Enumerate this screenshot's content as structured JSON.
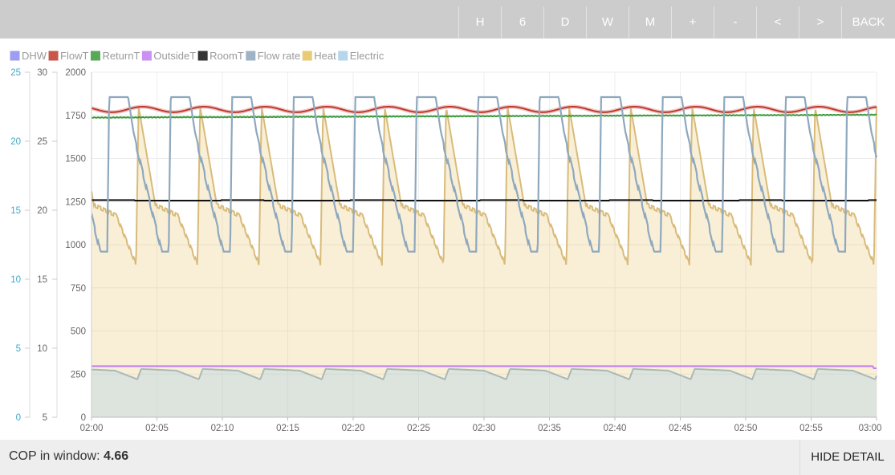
{
  "toolbar": {
    "buttons": [
      {
        "label": "H"
      },
      {
        "label": "6"
      },
      {
        "label": "D"
      },
      {
        "label": "W"
      },
      {
        "label": "M"
      },
      {
        "label": "+"
      },
      {
        "label": "-"
      },
      {
        "label": "<"
      },
      {
        "label": ">"
      },
      {
        "label": "BACK"
      }
    ]
  },
  "footer": {
    "cop_label": "COP in window:",
    "cop_value": "4.66",
    "hide_detail": "HIDE DETAIL"
  },
  "colors": {
    "DHW": "#8c8cf0",
    "FlowT": "#c0392b",
    "ReturnT": "#3a9a3a",
    "OutsideT": "#c27ef0",
    "RoomT": "#111111",
    "Flow rate": "#8ea8bd",
    "Heat": "#e6c15e",
    "Electric": "#a9cfe8"
  },
  "chart_data": {
    "type": "line",
    "legend": [
      "DHW",
      "FlowT",
      "ReturnT",
      "OutsideT",
      "RoomT",
      "Flow rate",
      "Heat",
      "Electric"
    ],
    "legend_position": "top-left",
    "grid": true,
    "x_ticks": [
      "02:00",
      "02:05",
      "02:10",
      "02:15",
      "02:20",
      "02:25",
      "02:30",
      "02:35",
      "02:40",
      "02:45",
      "02:50",
      "02:55",
      "03:00"
    ],
    "x_range": [
      "02:00",
      "03:00"
    ],
    "axes": {
      "flow_rate_axis": {
        "range": [
          0,
          25
        ],
        "ticks": [
          0,
          5,
          10,
          15,
          20,
          25
        ]
      },
      "temperature_axis": {
        "range": [
          5,
          30
        ],
        "ticks": [
          5,
          10,
          15,
          20,
          25,
          30
        ]
      },
      "power_axis": {
        "range": [
          0,
          2000
        ],
        "ticks": [
          0,
          250,
          500,
          750,
          1000,
          1250,
          1500,
          1750,
          2000
        ]
      }
    },
    "cycle_minutes": 4.7,
    "series": [
      {
        "name": "FlowT",
        "axis": "temperature",
        "min": 27.1,
        "max": 27.5
      },
      {
        "name": "ReturnT",
        "axis": "temperature",
        "values_start": 26.7,
        "values_end": 26.9
      },
      {
        "name": "RoomT",
        "axis": "temperature",
        "value": 20.7
      },
      {
        "name": "OutsideT",
        "axis": "temperature",
        "value": 8.7
      },
      {
        "name": "Flow rate",
        "axis": "flow_rate",
        "min": 12.0,
        "max": 23.2
      },
      {
        "name": "Heat",
        "axis": "power",
        "peak": 1800,
        "shoulder": 1220,
        "trough": 880
      },
      {
        "name": "Electric",
        "axis": "power",
        "min": 220,
        "max": 280
      }
    ]
  }
}
